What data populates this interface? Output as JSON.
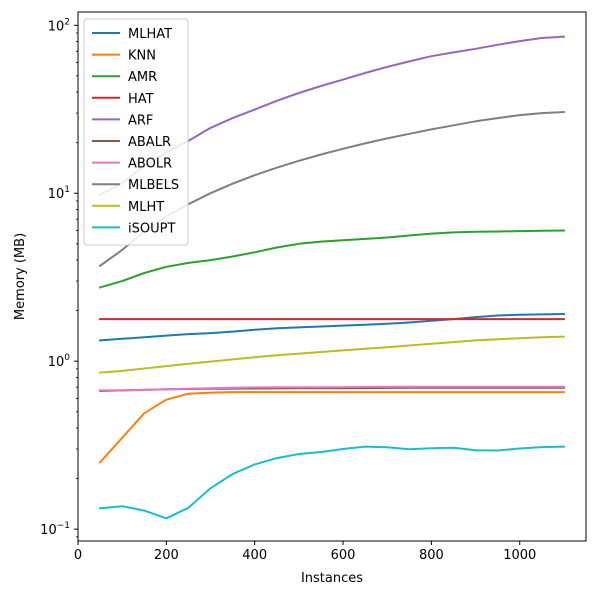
{
  "chart_data": {
    "type": "line",
    "xlabel": "Instances",
    "ylabel": "Memory (MB)",
    "yscale": "log",
    "xlim": [
      0,
      1150
    ],
    "ylim": [
      0.085,
      120
    ],
    "xticks": [
      0,
      200,
      400,
      600,
      800,
      1000
    ],
    "xtick_labels": [
      "0",
      "200",
      "400",
      "600",
      "800",
      "1000"
    ],
    "yticks": [
      0.1,
      1,
      10,
      100
    ],
    "ytick_labels": [
      {
        "base": "10",
        "exp": "−1"
      },
      {
        "base": "10",
        "exp": "0"
      },
      {
        "base": "10",
        "exp": "1"
      },
      {
        "base": "10",
        "exp": "2"
      }
    ],
    "legend": "upper-left",
    "grid": false,
    "x": [
      50,
      100,
      150,
      200,
      250,
      300,
      350,
      400,
      450,
      500,
      550,
      600,
      650,
      700,
      750,
      800,
      850,
      900,
      950,
      1000,
      1050,
      1100
    ],
    "series": [
      {
        "name": "MLHAT",
        "color": "#1f77b4",
        "values": [
          1.33,
          1.36,
          1.39,
          1.42,
          1.45,
          1.47,
          1.5,
          1.54,
          1.57,
          1.59,
          1.61,
          1.63,
          1.65,
          1.67,
          1.7,
          1.74,
          1.78,
          1.83,
          1.87,
          1.89,
          1.9,
          1.91
        ]
      },
      {
        "name": "KNN",
        "color": "#ff7f0e",
        "values": [
          0.25,
          0.35,
          0.49,
          0.59,
          0.64,
          0.65,
          0.655,
          0.655,
          0.655,
          0.655,
          0.655,
          0.655,
          0.655,
          0.655,
          0.655,
          0.655,
          0.655,
          0.655,
          0.655,
          0.655,
          0.655,
          0.655
        ]
      },
      {
        "name": "AMR",
        "color": "#2ca02c",
        "values": [
          2.75,
          3.0,
          3.35,
          3.65,
          3.85,
          4.0,
          4.2,
          4.45,
          4.75,
          5.0,
          5.15,
          5.25,
          5.35,
          5.45,
          5.6,
          5.75,
          5.85,
          5.9,
          5.92,
          5.95,
          5.98,
          6.0
        ]
      },
      {
        "name": "HAT",
        "color": "#d62728",
        "values": [
          1.78,
          1.78,
          1.78,
          1.78,
          1.78,
          1.78,
          1.78,
          1.78,
          1.78,
          1.78,
          1.78,
          1.78,
          1.78,
          1.78,
          1.78,
          1.78,
          1.78,
          1.78,
          1.78,
          1.78,
          1.78,
          1.78
        ]
      },
      {
        "name": "ARF",
        "color": "#9467bd",
        "values": [
          9.8,
          11.5,
          14.5,
          17.5,
          20.5,
          24.5,
          28.0,
          31.5,
          35.5,
          39.5,
          43.5,
          47.5,
          52.0,
          56.5,
          61.0,
          65.5,
          69.0,
          72.5,
          76.5,
          80.5,
          84.0,
          85.5
        ]
      },
      {
        "name": "ABALR",
        "color": "#8c564b",
        "values": [
          0.665,
          0.67,
          0.675,
          0.68,
          0.683,
          0.685,
          0.687,
          0.688,
          0.689,
          0.69,
          0.69,
          0.69,
          0.692,
          0.693,
          0.694,
          0.695,
          0.695,
          0.695,
          0.695,
          0.695,
          0.695,
          0.695
        ]
      },
      {
        "name": "ABOLR",
        "color": "#e377c2",
        "values": [
          0.67,
          0.672,
          0.675,
          0.68,
          0.685,
          0.69,
          0.695,
          0.698,
          0.7,
          0.7,
          0.7,
          0.701,
          0.703,
          0.705,
          0.705,
          0.705,
          0.705,
          0.705,
          0.705,
          0.705,
          0.705,
          0.705
        ]
      },
      {
        "name": "MLBELS",
        "color": "#7f7f7f",
        "values": [
          3.7,
          4.6,
          5.9,
          7.3,
          8.6,
          10.0,
          11.4,
          12.8,
          14.2,
          15.6,
          17.0,
          18.4,
          19.8,
          21.2,
          22.6,
          24.0,
          25.4,
          26.8,
          28.0,
          29.2,
          30.0,
          30.4
        ]
      },
      {
        "name": "MLHT",
        "color": "#bcbd22",
        "values": [
          0.855,
          0.875,
          0.905,
          0.935,
          0.965,
          0.995,
          1.025,
          1.055,
          1.085,
          1.11,
          1.135,
          1.16,
          1.185,
          1.21,
          1.24,
          1.27,
          1.3,
          1.33,
          1.35,
          1.37,
          1.39,
          1.4
        ]
      },
      {
        "name": "iSOUPT",
        "color": "#17becf",
        "values": [
          0.133,
          0.137,
          0.129,
          0.116,
          0.134,
          0.175,
          0.213,
          0.243,
          0.265,
          0.28,
          0.288,
          0.3,
          0.31,
          0.307,
          0.299,
          0.303,
          0.305,
          0.295,
          0.294,
          0.302,
          0.308,
          0.31
        ]
      }
    ]
  }
}
